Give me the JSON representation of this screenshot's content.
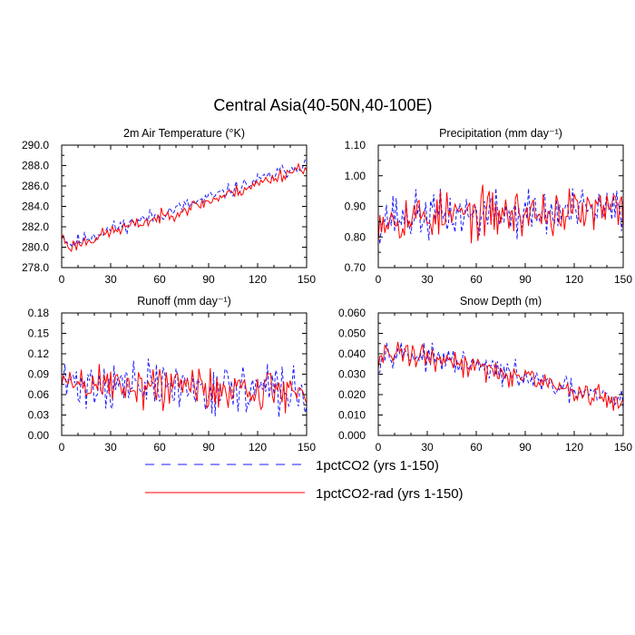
{
  "title": "Central Asia(40-50N,40-100E)",
  "colors": {
    "series_a": "#1a1aff",
    "series_b": "#ff0000"
  },
  "legend": {
    "placement": "bottom-center",
    "items": [
      {
        "label": "1pctCO2 (yrs 1-150)",
        "color": "#1a1aff",
        "style": "dashed"
      },
      {
        "label": "1pctCO2-rad (yrs 1-150)",
        "color": "#ff0000",
        "style": "solid"
      }
    ]
  },
  "chart_data": [
    {
      "type": "line",
      "title": "2m Air Temperature (°K)",
      "xlim": [
        0,
        150
      ],
      "ylim": [
        278,
        290
      ],
      "xticks": [
        "0",
        "30",
        "60",
        "90",
        "120",
        "150"
      ],
      "yticks": [
        "278.0",
        "280.0",
        "282.0",
        "284.0",
        "286.0",
        "288.0",
        "290.0"
      ],
      "trend": {
        "x": [
          0,
          5,
          30,
          60,
          90,
          120,
          150
        ],
        "y": [
          281.3,
          280.3,
          281.8,
          283.2,
          284.8,
          286.5,
          288.3
        ]
      },
      "series": [
        {
          "name": "1pctCO2 (yrs 1-150)",
          "noise": 0.55,
          "seed": 11,
          "clip": [
            279.6,
            289.4
          ]
        },
        {
          "name": "1pctCO2-rad (yrs 1-150)",
          "noise": 0.5,
          "seed": 23,
          "offset": -0.3,
          "clip": [
            279.6,
            288.8
          ]
        }
      ]
    },
    {
      "type": "line",
      "title": "Precipitation (mm day⁻¹)",
      "xlim": [
        0,
        150
      ],
      "ylim": [
        0.7,
        1.1
      ],
      "xticks": [
        "0",
        "30",
        "60",
        "90",
        "120",
        "150"
      ],
      "yticks": [
        "0.70",
        "0.80",
        "0.90",
        "1.00",
        "1.10"
      ],
      "trend": {
        "x": [
          0,
          150
        ],
        "y": [
          0.865,
          0.885
        ]
      },
      "series": [
        {
          "name": "1pctCO2 (yrs 1-150)",
          "noise": 0.06,
          "seed": 37,
          "clip": [
            0.72,
            1.09
          ]
        },
        {
          "name": "1pctCO2-rad (yrs 1-150)",
          "noise": 0.06,
          "seed": 53,
          "clip": [
            0.72,
            1.1
          ]
        }
      ]
    },
    {
      "type": "line",
      "title": "Runoff (mm day⁻¹)",
      "xlim": [
        0,
        150
      ],
      "ylim": [
        0,
        0.18
      ],
      "xticks": [
        "0",
        "30",
        "60",
        "90",
        "120",
        "150"
      ],
      "yticks": [
        "0.00",
        "0.03",
        "0.06",
        "0.09",
        "0.12",
        "0.15",
        "0.18"
      ],
      "trend": {
        "x": [
          0,
          150
        ],
        "y": [
          0.077,
          0.065
        ]
      },
      "series": [
        {
          "name": "1pctCO2 (yrs 1-150)",
          "noise": 0.028,
          "seed": 71,
          "clip": [
            0.002,
            0.12
          ]
        },
        {
          "name": "1pctCO2-rad (yrs 1-150)",
          "noise": 0.026,
          "seed": 89,
          "clip": [
            0.03,
            0.15
          ]
        }
      ]
    },
    {
      "type": "line",
      "title": "Snow Depth (m)",
      "xlim": [
        0,
        150
      ],
      "ylim": [
        0,
        0.06
      ],
      "xticks": [
        "0",
        "30",
        "60",
        "90",
        "120",
        "150"
      ],
      "yticks": [
        "0.000",
        "0.010",
        "0.020",
        "0.030",
        "0.040",
        "0.050",
        "0.060"
      ],
      "trend": {
        "x": [
          0,
          5,
          30,
          60,
          90,
          120,
          150
        ],
        "y": [
          0.036,
          0.042,
          0.038,
          0.034,
          0.028,
          0.021,
          0.017
        ]
      },
      "series": [
        {
          "name": "1pctCO2 (yrs 1-150)",
          "noise": 0.0045,
          "seed": 97,
          "clip": [
            0.008,
            0.05
          ]
        },
        {
          "name": "1pctCO2-rad (yrs 1-150)",
          "noise": 0.0045,
          "seed": 131,
          "clip": [
            0.01,
            0.055
          ]
        }
      ]
    }
  ]
}
